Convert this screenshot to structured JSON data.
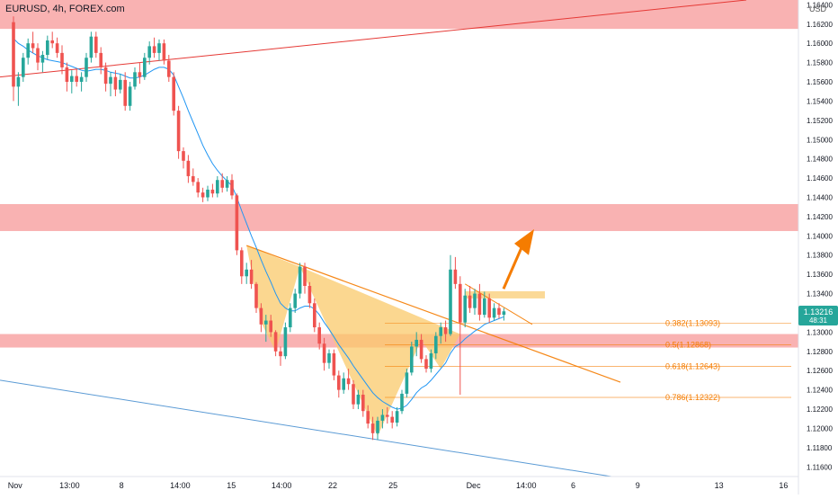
{
  "header": {
    "symbol": "EURUSD, 4h, FOREX.com",
    "currency": "USD"
  },
  "price_badge": {
    "price": "1.13216",
    "countdown": "48:31",
    "color": "#26a69a"
  },
  "colors": {
    "up": "#26a69a",
    "down": "#ef5350",
    "ma": "#2196f3",
    "zone": "#f8a5a5",
    "pattern": "#f9c96b",
    "fib": "#f57c00",
    "trend_red": "#e53935",
    "trend_blue": "#5b9bd5",
    "arrow": "#f57c00"
  },
  "chart_data": {
    "type": "candlestick",
    "title": "EURUSD, 4h, FOREX.com",
    "y_axis": {
      "ylim": [
        1.115,
        1.1645
      ],
      "ticks": [
        "1.16400",
        "1.16200",
        "1.16000",
        "1.15800",
        "1.15600",
        "1.15400",
        "1.15200",
        "1.15000",
        "1.14800",
        "1.14600",
        "1.14400",
        "1.14200",
        "1.14000",
        "1.13800",
        "1.13600",
        "1.13400",
        "1.13000",
        "1.12800",
        "1.12600",
        "1.12400",
        "1.12200",
        "1.12000",
        "1.11800",
        "1.11600"
      ]
    },
    "x_axis": {
      "labels": [
        "Nov",
        "13:00",
        "8",
        "14:00",
        "15",
        "14:00",
        "22",
        "25",
        "Dec",
        "14:00",
        "6",
        "9",
        "13",
        "16"
      ],
      "label_positions": [
        0.018,
        0.083,
        0.145,
        0.215,
        0.276,
        0.336,
        0.397,
        0.469,
        0.565,
        0.628,
        0.684,
        0.761,
        0.858,
        0.935
      ]
    },
    "candles": [
      [
        1.1622,
        1.1628,
        1.154,
        1.1555
      ],
      [
        1.1555,
        1.157,
        1.1535,
        1.1565
      ],
      [
        1.1565,
        1.159,
        1.156,
        1.1585
      ],
      [
        1.1585,
        1.1605,
        1.1578,
        1.16
      ],
      [
        1.16,
        1.1612,
        1.159,
        1.1595
      ],
      [
        1.1595,
        1.16,
        1.1572,
        1.158
      ],
      [
        1.158,
        1.1592,
        1.157,
        1.1588
      ],
      [
        1.1588,
        1.1608,
        1.1583,
        1.1603
      ],
      [
        1.1603,
        1.1612,
        1.1595,
        1.16
      ],
      [
        1.16,
        1.1606,
        1.1585,
        1.159
      ],
      [
        1.159,
        1.1598,
        1.1568,
        1.1575
      ],
      [
        1.1575,
        1.158,
        1.155,
        1.156
      ],
      [
        1.156,
        1.1572,
        1.1548,
        1.1566
      ],
      [
        1.1566,
        1.1574,
        1.1555,
        1.156
      ],
      [
        1.156,
        1.157,
        1.155,
        1.1565
      ],
      [
        1.1565,
        1.159,
        1.156,
        1.1585
      ],
      [
        1.1585,
        1.1612,
        1.158,
        1.1607
      ],
      [
        1.1607,
        1.1612,
        1.1585,
        1.159
      ],
      [
        1.159,
        1.1596,
        1.1568,
        1.1575
      ],
      [
        1.1575,
        1.158,
        1.155,
        1.1558
      ],
      [
        1.1558,
        1.157,
        1.1545,
        1.1565
      ],
      [
        1.1565,
        1.1572,
        1.1545,
        1.1552
      ],
      [
        1.1552,
        1.1568,
        1.1548,
        1.1562
      ],
      [
        1.1562,
        1.157,
        1.153,
        1.1535
      ],
      [
        1.1535,
        1.156,
        1.153,
        1.1555
      ],
      [
        1.1555,
        1.1575,
        1.1552,
        1.157
      ],
      [
        1.157,
        1.158,
        1.1558,
        1.1565
      ],
      [
        1.1565,
        1.159,
        1.1562,
        1.1585
      ],
      [
        1.1585,
        1.1602,
        1.1578,
        1.1597
      ],
      [
        1.1597,
        1.1606,
        1.1585,
        1.159
      ],
      [
        1.159,
        1.1604,
        1.1582,
        1.16
      ],
      [
        1.16,
        1.1604,
        1.1578,
        1.1582
      ],
      [
        1.1582,
        1.1588,
        1.156,
        1.1565
      ],
      [
        1.1565,
        1.157,
        1.1525,
        1.153
      ],
      [
        1.153,
        1.1535,
        1.148,
        1.1488
      ],
      [
        1.1488,
        1.1492,
        1.147,
        1.1478
      ],
      [
        1.1478,
        1.1484,
        1.1455,
        1.1462
      ],
      [
        1.1462,
        1.147,
        1.1452,
        1.1456
      ],
      [
        1.1456,
        1.146,
        1.144,
        1.1445
      ],
      [
        1.1445,
        1.145,
        1.1435,
        1.144
      ],
      [
        1.144,
        1.1452,
        1.1436,
        1.1448
      ],
      [
        1.1448,
        1.1454,
        1.144,
        1.1444
      ],
      [
        1.1444,
        1.1462,
        1.144,
        1.1458
      ],
      [
        1.1458,
        1.1465,
        1.1445,
        1.145
      ],
      [
        1.145,
        1.1462,
        1.1446,
        1.1458
      ],
      [
        1.1458,
        1.1464,
        1.1438,
        1.1442
      ],
      [
        1.1442,
        1.1444,
        1.138,
        1.1385
      ],
      [
        1.1385,
        1.1388,
        1.135,
        1.1358
      ],
      [
        1.1358,
        1.1372,
        1.135,
        1.1365
      ],
      [
        1.1365,
        1.1375,
        1.1345,
        1.135
      ],
      [
        1.135,
        1.1352,
        1.132,
        1.1325
      ],
      [
        1.1325,
        1.133,
        1.13,
        1.1308
      ],
      [
        1.1308,
        1.1318,
        1.129,
        1.1312
      ],
      [
        1.1312,
        1.1318,
        1.1295,
        1.13
      ],
      [
        1.13,
        1.1302,
        1.1275,
        1.128
      ],
      [
        1.128,
        1.1285,
        1.1265,
        1.1275
      ],
      [
        1.1275,
        1.131,
        1.1272,
        1.1305
      ],
      [
        1.1305,
        1.133,
        1.13,
        1.1325
      ],
      [
        1.1325,
        1.1345,
        1.132,
        1.134
      ],
      [
        1.134,
        1.1372,
        1.1335,
        1.1368
      ],
      [
        1.1368,
        1.1372,
        1.134,
        1.1348
      ],
      [
        1.1348,
        1.1352,
        1.1325,
        1.133
      ],
      [
        1.133,
        1.1335,
        1.13,
        1.1305
      ],
      [
        1.1305,
        1.131,
        1.1282,
        1.1288
      ],
      [
        1.1288,
        1.1294,
        1.126,
        1.1268
      ],
      [
        1.1268,
        1.1282,
        1.1262,
        1.1278
      ],
      [
        1.1278,
        1.1282,
        1.125,
        1.1255
      ],
      [
        1.1255,
        1.126,
        1.1232,
        1.124
      ],
      [
        1.124,
        1.1258,
        1.1236,
        1.1252
      ],
      [
        1.1252,
        1.1262,
        1.124,
        1.1246
      ],
      [
        1.1246,
        1.125,
        1.122,
        1.1225
      ],
      [
        1.1225,
        1.124,
        1.122,
        1.1235
      ],
      [
        1.1235,
        1.124,
        1.1212,
        1.1218
      ],
      [
        1.1218,
        1.1224,
        1.12,
        1.1205
      ],
      [
        1.1205,
        1.1212,
        1.1188,
        1.1195
      ],
      [
        1.1195,
        1.1212,
        1.1188,
        1.1208
      ],
      [
        1.1208,
        1.122,
        1.12,
        1.1214
      ],
      [
        1.1214,
        1.1222,
        1.1205,
        1.1212
      ],
      [
        1.1212,
        1.1218,
        1.12,
        1.1206
      ],
      [
        1.1206,
        1.1222,
        1.1202,
        1.1218
      ],
      [
        1.1218,
        1.124,
        1.1215,
        1.1236
      ],
      [
        1.1236,
        1.1262,
        1.1232,
        1.1258
      ],
      [
        1.1258,
        1.129,
        1.1255,
        1.1285
      ],
      [
        1.1285,
        1.13,
        1.1275,
        1.1292
      ],
      [
        1.1292,
        1.1298,
        1.1268,
        1.1272
      ],
      [
        1.1272,
        1.1276,
        1.1258,
        1.1262
      ],
      [
        1.1262,
        1.1282,
        1.1258,
        1.1278
      ],
      [
        1.1278,
        1.13,
        1.1272,
        1.1296
      ],
      [
        1.1296,
        1.131,
        1.1288,
        1.1305
      ],
      [
        1.1305,
        1.1312,
        1.129,
        1.1298
      ],
      [
        1.1298,
        1.138,
        1.1296,
        1.1365
      ],
      [
        1.1365,
        1.1378,
        1.1345,
        1.135
      ],
      [
        1.135,
        1.1358,
        1.1235,
        1.131
      ],
      [
        1.131,
        1.1345,
        1.1305,
        1.1338
      ],
      [
        1.1338,
        1.1348,
        1.132,
        1.1325
      ],
      [
        1.1325,
        1.1345,
        1.1318,
        1.134
      ],
      [
        1.134,
        1.135,
        1.1312,
        1.1318
      ],
      [
        1.1318,
        1.1342,
        1.1315,
        1.1335
      ],
      [
        1.1335,
        1.134,
        1.131,
        1.1315
      ],
      [
        1.1315,
        1.133,
        1.1312,
        1.1325
      ],
      [
        1.1325,
        1.133,
        1.1314,
        1.1318
      ],
      [
        1.1318,
        1.1325,
        1.1312,
        1.13216
      ]
    ],
    "moving_average": [
      1.1605,
      1.16,
      1.1597,
      1.1593,
      1.159,
      1.1587,
      1.1585,
      1.1583,
      1.1582,
      1.1581,
      1.158,
      1.1578,
      1.1576,
      1.1574,
      1.1572,
      1.1571,
      1.1572,
      1.1573,
      1.1573,
      1.1572,
      1.157,
      1.1569,
      1.1568,
      1.1566,
      1.1564,
      1.1564,
      1.1565,
      1.1567,
      1.157,
      1.1573,
      1.1575,
      1.1575,
      1.1573,
      1.1567,
      1.1555,
      1.1543,
      1.153,
      1.1518,
      1.1506,
      1.1494,
      1.1484,
      1.1475,
      1.1468,
      1.1462,
      1.1457,
      1.1452,
      1.144,
      1.1426,
      1.1413,
      1.14,
      1.1388,
      1.1375,
      1.1363,
      1.1352,
      1.134,
      1.133,
      1.1325,
      1.1322,
      1.1322,
      1.1325,
      1.1327,
      1.1327,
      1.1324,
      1.1318,
      1.131,
      1.1303,
      1.1295,
      1.1287,
      1.128,
      1.1273,
      1.1265,
      1.1258,
      1.1251,
      1.1244,
      1.1237,
      1.1232,
      1.1228,
      1.1225,
      1.1222,
      1.122,
      1.1221,
      1.1224,
      1.123,
      1.1237,
      1.1242,
      1.1245,
      1.125,
      1.1256,
      1.1262,
      1.1268,
      1.1278,
      1.1285,
      1.1288,
      1.1293,
      1.1297,
      1.1301,
      1.1304,
      1.1308,
      1.131,
      1.1312,
      1.1314,
      1.1316
    ],
    "fibonacci": [
      {
        "label": "0.382(1.13093)",
        "value": 1.13093
      },
      {
        "label": "0.5(1.12868)",
        "value": 1.12868
      },
      {
        "label": "0.618(1.12643)",
        "value": 1.12643
      },
      {
        "label": "0.786(1.12322)",
        "value": 1.12322
      }
    ],
    "zones": [
      {
        "from": 1.1615,
        "to": 1.1645
      },
      {
        "from": 1.1405,
        "to": 1.1433
      },
      {
        "from": 1.1284,
        "to": 1.1298
      }
    ]
  }
}
